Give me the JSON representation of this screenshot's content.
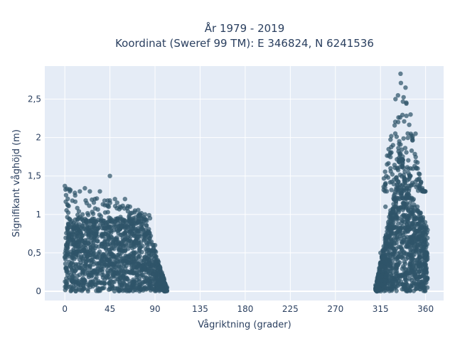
{
  "chart_data": {
    "type": "scatter",
    "title_line1": "År 1979 - 2019",
    "title_line2": "Koordinat (Sweref 99 TM): E 346824, N 6241536",
    "xlabel": "Vågriktning (grader)",
    "ylabel": "Signifikant våghöjd (m)",
    "xlim": [
      -20,
      378
    ],
    "ylim": [
      -0.12,
      2.93
    ],
    "xticks": [
      0,
      45,
      90,
      135,
      180,
      225,
      270,
      315,
      360
    ],
    "xtick_labels": [
      "0",
      "45",
      "90",
      "135",
      "180",
      "225",
      "270",
      "315",
      "360"
    ],
    "yticks": [
      0,
      0.5,
      1,
      1.5,
      2,
      2.5
    ],
    "ytick_labels": [
      "0",
      "0,5",
      "1",
      "1,5",
      "2",
      "2,5"
    ],
    "grid": true,
    "marker_color": "#2f5469",
    "plot_bg": "#e5ecf6",
    "clusters": [
      {
        "x_range": [
          0,
          102
        ],
        "y_range": [
          0,
          1.5
        ],
        "dense_below": 0.95
      },
      {
        "x_range": [
          310,
          362
        ],
        "y_range": [
          0,
          2.83
        ],
        "dense_below": 1.3
      }
    ],
    "series": [
      {
        "x": [
          0,
          5,
          10,
          15,
          20,
          25,
          30,
          35,
          40,
          45,
          50,
          55,
          60,
          65,
          70,
          75,
          80,
          85,
          90,
          95,
          100,
          102,
          310,
          315,
          320,
          325,
          330,
          335,
          340,
          345,
          350,
          355,
          360
        ],
        "y": [
          1.37,
          1.3,
          1.28,
          1.3,
          1.34,
          1.3,
          1.2,
          1.3,
          1.12,
          1.5,
          1.2,
          1.1,
          1.2,
          1.1,
          1.05,
          1.0,
          1.0,
          0.95,
          0.6,
          0.3,
          0.1,
          0.05,
          0.08,
          0.5,
          1.1,
          1.6,
          2.5,
          2.83,
          2.65,
          2.3,
          2.05,
          1.4,
          0.6
        ]
      }
    ]
  }
}
